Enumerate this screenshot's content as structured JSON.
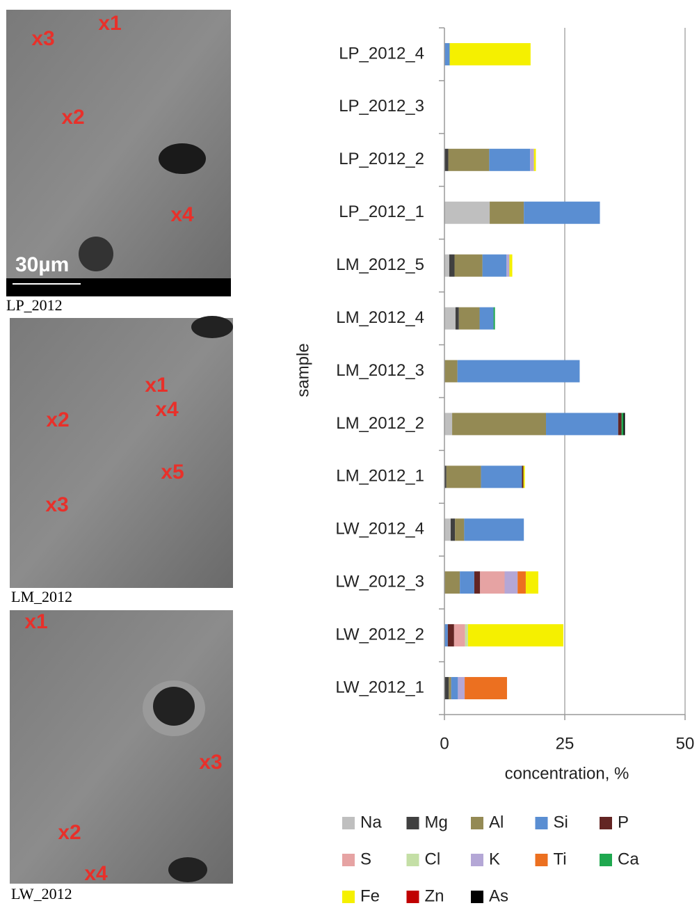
{
  "chart_data": {
    "type": "bar",
    "orientation": "horizontal",
    "stacked": true,
    "xlabel": "concentration, %",
    "ylabel": "sample",
    "categories": [
      "LP_2012_4",
      "LP_2012_3",
      "LP_2012_2",
      "LP_2012_1",
      "LM_2012_5",
      "LM_2012_4",
      "LM_2012_3",
      "LM_2012_2",
      "LM_2012_1",
      "LW_2012_4",
      "LW_2012_3",
      "LW_2012_2",
      "LW_2012_1"
    ],
    "series": [
      {
        "name": "Na",
        "color": "#bfbfbf",
        "values": [
          0,
          0,
          0,
          9.4,
          1.0,
          2.3,
          0,
          1.6,
          0,
          1.3,
          0,
          0,
          0
        ]
      },
      {
        "name": "Mg",
        "color": "#404040",
        "values": [
          0,
          0,
          0.8,
          0,
          1.1,
          0.7,
          0,
          0,
          0.4,
          0.9,
          0,
          0,
          0.9
        ]
      },
      {
        "name": "Al",
        "color": "#948a54",
        "values": [
          0,
          0,
          8.5,
          7.1,
          5.8,
          4.3,
          2.7,
          19.5,
          7.2,
          1.9,
          3.2,
          0,
          0.5
        ]
      },
      {
        "name": "Si",
        "color": "#5a8ed2",
        "values": [
          1.1,
          0,
          8.5,
          15.8,
          5.0,
          2.9,
          25.4,
          15.0,
          8.5,
          12.4,
          3.0,
          0.7,
          1.4
        ]
      },
      {
        "name": "P",
        "color": "#632523",
        "values": [
          0,
          0,
          0,
          0,
          0,
          0,
          0,
          0.7,
          0.3,
          0,
          1.2,
          1.3,
          0
        ]
      },
      {
        "name": "S",
        "color": "#e6a3a3",
        "values": [
          0,
          0,
          0,
          0,
          0,
          0,
          0,
          0,
          0,
          0,
          5.1,
          2.3,
          0
        ]
      },
      {
        "name": "Cl",
        "color": "#c4dfa6",
        "values": [
          0,
          0,
          0,
          0,
          0,
          0,
          0,
          0,
          0,
          0,
          0,
          0.6,
          0
        ]
      },
      {
        "name": "K",
        "color": "#b4a7d6",
        "values": [
          0,
          0,
          0.8,
          0,
          0.6,
          0,
          0,
          0,
          0,
          0,
          2.7,
          0,
          1.4
        ]
      },
      {
        "name": "Ti",
        "color": "#ec7020",
        "values": [
          0,
          0,
          0,
          0,
          0,
          0,
          0,
          0,
          0,
          0,
          1.7,
          0,
          8.8
        ]
      },
      {
        "name": "Ca",
        "color": "#1fa84f",
        "values": [
          0,
          0,
          0,
          0,
          0,
          0.3,
          0,
          0.4,
          0,
          0,
          0,
          0,
          0
        ]
      },
      {
        "name": "Fe",
        "color": "#f5f000",
        "values": [
          16.8,
          0,
          0.4,
          0,
          0.6,
          0,
          0,
          0,
          0.3,
          0,
          2.6,
          19.8,
          0
        ]
      },
      {
        "name": "Zn",
        "color": "#c00000",
        "values": [
          0,
          0,
          0,
          0,
          0,
          0,
          0,
          0,
          0,
          0,
          0,
          0,
          0
        ]
      },
      {
        "name": "As",
        "color": "#000000",
        "values": [
          0,
          0,
          0,
          0,
          0,
          0,
          0,
          0.3,
          0,
          0,
          0,
          0,
          0
        ]
      }
    ],
    "xlim": [
      0,
      50
    ],
    "xticks": [
      0,
      25,
      50
    ],
    "grid": true
  },
  "images": [
    {
      "caption": "LP_2012",
      "scale_label": "30µm",
      "labels": [
        "x1",
        "x3",
        "x2",
        "x4"
      ]
    },
    {
      "caption": "LM_2012",
      "labels": [
        "x1",
        "x4",
        "x2",
        "x5",
        "x3"
      ]
    },
    {
      "caption": "LW_2012",
      "labels": [
        "x1",
        "x3",
        "x2",
        "x4"
      ]
    }
  ]
}
